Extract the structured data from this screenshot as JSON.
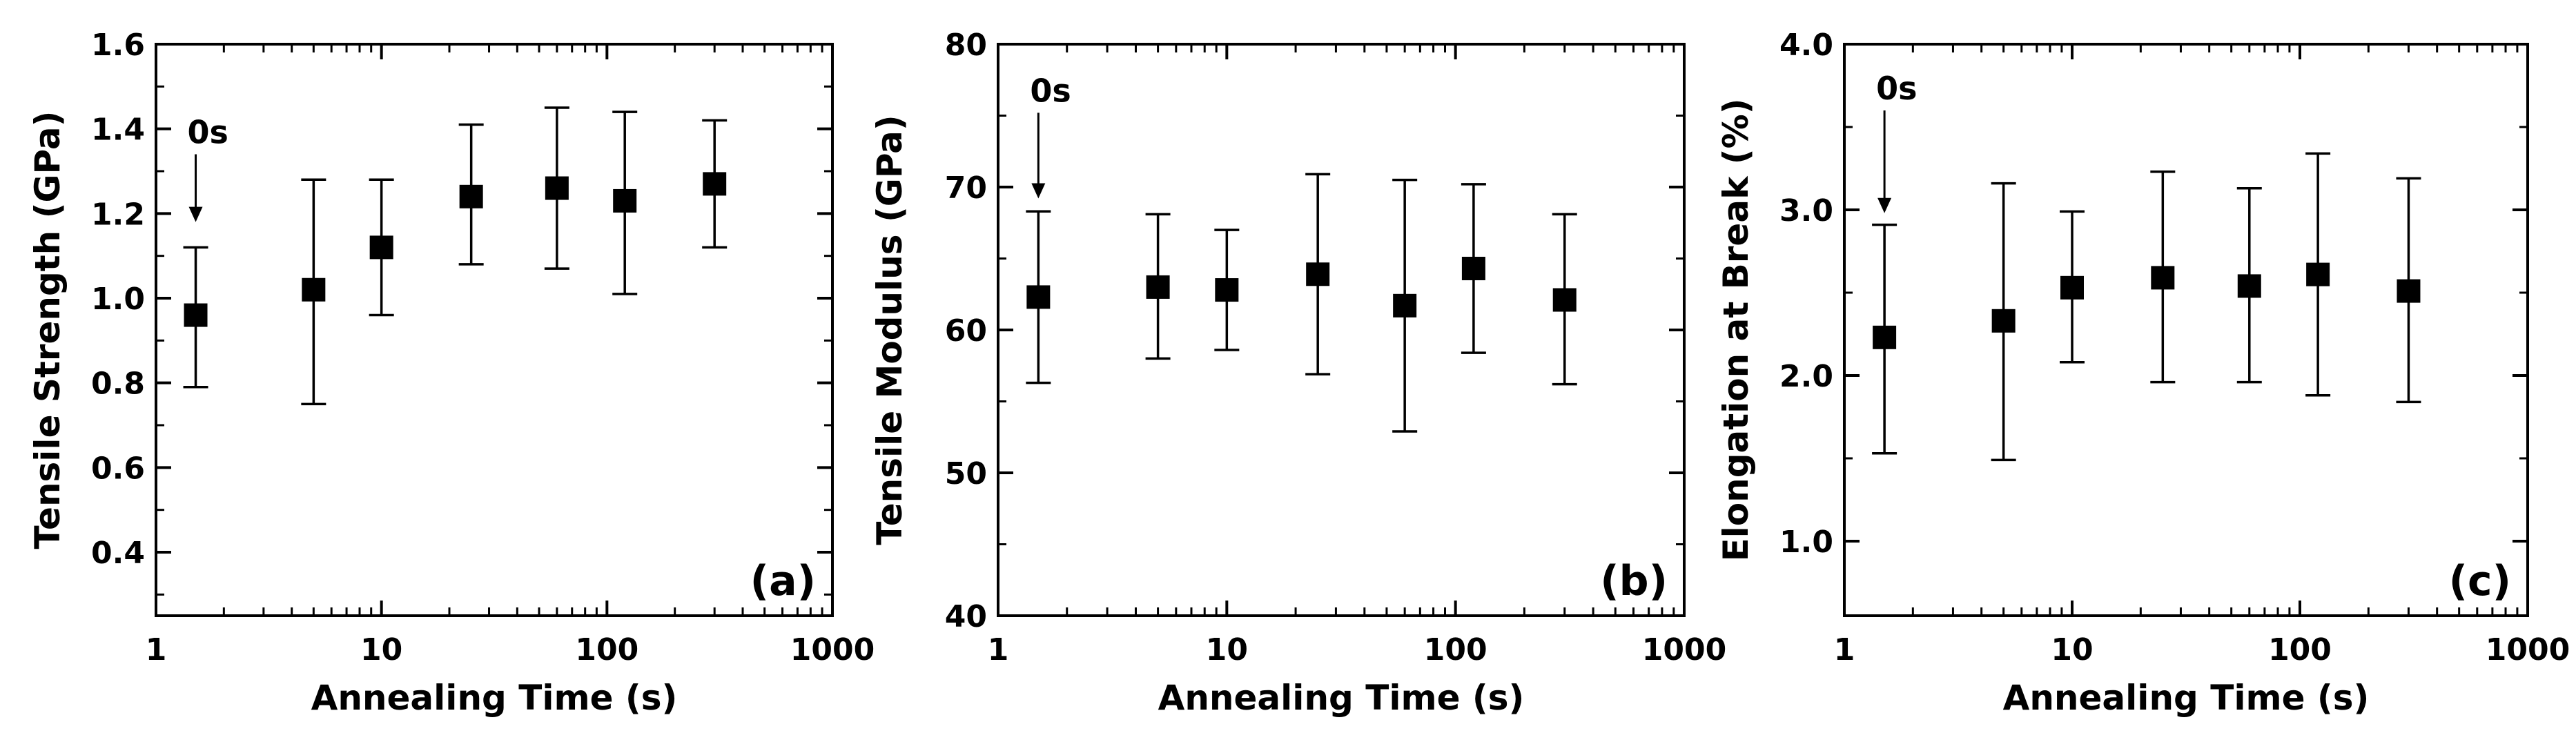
{
  "chart_data": [
    {
      "type": "scatter",
      "panel_label": "(a)",
      "xlabel": "Annealing Time (s)",
      "ylabel": "Tensile Strength (GPa)",
      "xscale": "log",
      "xlim": [
        1,
        1000
      ],
      "ylim": [
        0.25,
        1.6
      ],
      "xticks": [
        1,
        10,
        100,
        1000
      ],
      "xtick_labels": [
        "1",
        "10",
        "100",
        "1000"
      ],
      "yticks": [
        0.4,
        0.6,
        0.8,
        1.0,
        1.2,
        1.4,
        1.6
      ],
      "ytick_labels": [
        "0.4",
        "0.6",
        "0.8",
        "1.0",
        "1.2",
        "1.4",
        "1.6"
      ],
      "grid": false,
      "x": [
        1.5,
        5,
        10,
        25,
        60,
        120,
        300
      ],
      "y": [
        0.96,
        1.02,
        1.12,
        1.24,
        1.26,
        1.23,
        1.27
      ],
      "y_lower": [
        0.79,
        0.75,
        0.96,
        1.08,
        1.07,
        1.01,
        1.12
      ],
      "y_upper": [
        1.12,
        1.28,
        1.28,
        1.41,
        1.45,
        1.44,
        1.42
      ],
      "annotation": {
        "text": "0s",
        "x": 1.5,
        "y_from": 1.34,
        "y_to": 1.18
      }
    },
    {
      "type": "scatter",
      "panel_label": "(b)",
      "xlabel": "Annealing Time (s)",
      "ylabel": "Tensile Modulus (GPa)",
      "xscale": "log",
      "xlim": [
        1,
        1000
      ],
      "ylim": [
        40,
        80
      ],
      "xticks": [
        1,
        10,
        100,
        1000
      ],
      "xtick_labels": [
        "1",
        "10",
        "100",
        "1000"
      ],
      "yticks": [
        40,
        50,
        60,
        70,
        80
      ],
      "ytick_labels": [
        "40",
        "50",
        "60",
        "70",
        "80"
      ],
      "grid": false,
      "x": [
        1.5,
        5,
        10,
        25,
        60,
        120,
        300
      ],
      "y": [
        62.3,
        63.0,
        62.8,
        63.9,
        61.7,
        64.3,
        62.1
      ],
      "y_lower": [
        56.3,
        58.0,
        58.6,
        56.9,
        52.9,
        58.4,
        56.2
      ],
      "y_upper": [
        68.3,
        68.1,
        67.0,
        70.9,
        70.5,
        70.2,
        68.1
      ],
      "annotation": {
        "text": "0s",
        "x": 1.5,
        "y_from": 75.2,
        "y_to": 69.2
      }
    },
    {
      "type": "scatter",
      "panel_label": "(c)",
      "xlabel": "Annealing Time (s)",
      "ylabel": "Elongation at Break (%)",
      "xscale": "log",
      "xlim": [
        1,
        1000
      ],
      "ylim": [
        0.55,
        4.0
      ],
      "xticks": [
        1,
        10,
        100,
        1000
      ],
      "xtick_labels": [
        "1",
        "10",
        "100",
        "1000"
      ],
      "yticks": [
        1.0,
        2.0,
        3.0,
        4.0
      ],
      "ytick_labels": [
        "1.0",
        "2.0",
        "3.0",
        "4.0"
      ],
      "grid": false,
      "x": [
        1.5,
        5,
        10,
        25,
        60,
        120,
        300
      ],
      "y": [
        2.23,
        2.33,
        2.53,
        2.59,
        2.54,
        2.61,
        2.51
      ],
      "y_lower": [
        1.53,
        1.49,
        2.08,
        1.96,
        1.96,
        1.88,
        1.84
      ],
      "y_upper": [
        2.91,
        3.16,
        2.99,
        3.23,
        3.13,
        3.34,
        3.19
      ],
      "annotation": {
        "text": "0s",
        "x": 1.5,
        "y_from": 3.6,
        "y_to": 2.98
      }
    }
  ]
}
